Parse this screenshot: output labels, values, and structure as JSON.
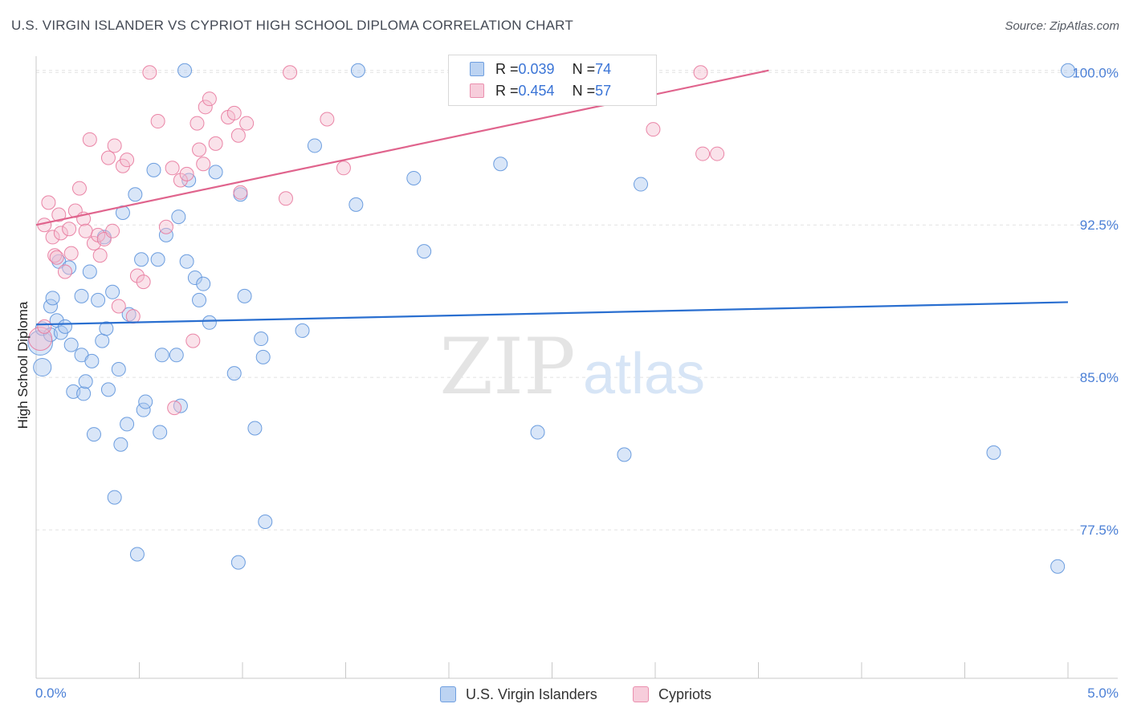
{
  "title": "U.S. VIRGIN ISLANDER VS CYPRIOT HIGH SCHOOL DIPLOMA CORRELATION CHART",
  "source": "Source: ZipAtlas.com",
  "watermark": {
    "zip": "ZIP",
    "atlas": "atlas"
  },
  "legend": {
    "rows": [
      {
        "r_label": "R = ",
        "r_value": "0.039",
        "n_label": "N = ",
        "n_value": "74"
      },
      {
        "r_label": "R = ",
        "r_value": "0.454",
        "n_label": "N = ",
        "n_value": "57"
      }
    ]
  },
  "bottom_legend": [
    "U.S. Virgin Islanders",
    "Cypriots"
  ],
  "colors": {
    "blue_fill": "#aac8ef",
    "blue_stroke": "#5d93db",
    "blue_line": "#2a6fd0",
    "pink_fill": "#f5bfd0",
    "pink_stroke": "#e8799d",
    "pink_line": "#e0648d",
    "grid": "#e2e2e2",
    "tick_text": "#4a7fd6"
  },
  "chart_data": {
    "type": "scatter",
    "title": "U.S. VIRGIN ISLANDER VS CYPRIOT HIGH SCHOOL DIPLOMA CORRELATION CHART",
    "xlabel": "",
    "ylabel": "High School Diploma",
    "xlim": [
      0.0,
      5.0
    ],
    "ylim": [
      70.2,
      100.8
    ],
    "x_tick_labels": [
      "0.0%",
      "5.0%"
    ],
    "y_ticks": [
      77.5,
      85.0,
      92.5,
      100.0
    ],
    "y_tick_labels": [
      "77.5%",
      "85.0%",
      "92.5%",
      "100.0%"
    ],
    "grid": true,
    "series": [
      {
        "name": "U.S. Virgin Islanders",
        "color": "blue",
        "trend": {
          "x": [
            0.0,
            5.0
          ],
          "y": [
            87.6,
            88.7
          ]
        },
        "points": [
          [
            0.02,
            86.7,
            1.8
          ],
          [
            0.03,
            85.5,
            1.3
          ],
          [
            0.03,
            87.4,
            1.0
          ],
          [
            0.07,
            87.1,
            1.0
          ],
          [
            0.07,
            88.5,
            1.0
          ],
          [
            0.08,
            88.9,
            1.0
          ],
          [
            0.1,
            87.8,
            1.0
          ],
          [
            0.11,
            90.7,
            1.0
          ],
          [
            0.12,
            87.2,
            1.0
          ],
          [
            0.14,
            87.5,
            1.0
          ],
          [
            0.16,
            90.4,
            1.0
          ],
          [
            0.17,
            86.6,
            1.0
          ],
          [
            0.18,
            84.3,
            1.0
          ],
          [
            0.22,
            89.0,
            1.0
          ],
          [
            0.22,
            86.1,
            1.0
          ],
          [
            0.23,
            84.2,
            1.0
          ],
          [
            0.24,
            84.8,
            1.0
          ],
          [
            0.26,
            90.2,
            1.0
          ],
          [
            0.27,
            85.8,
            1.0
          ],
          [
            0.28,
            82.2,
            1.0
          ],
          [
            0.3,
            88.8,
            1.0
          ],
          [
            0.32,
            86.8,
            1.0
          ],
          [
            0.33,
            91.9,
            1.0
          ],
          [
            0.34,
            87.4,
            1.0
          ],
          [
            0.35,
            84.4,
            1.0
          ],
          [
            0.37,
            89.2,
            1.0
          ],
          [
            0.38,
            79.1,
            1.0
          ],
          [
            0.4,
            85.4,
            1.0
          ],
          [
            0.41,
            81.7,
            1.0
          ],
          [
            0.42,
            93.1,
            1.0
          ],
          [
            0.44,
            82.7,
            1.0
          ],
          [
            0.45,
            88.1,
            1.0
          ],
          [
            0.48,
            94.0,
            1.0
          ],
          [
            0.49,
            76.3,
            1.0
          ],
          [
            0.51,
            90.8,
            1.0
          ],
          [
            0.52,
            83.4,
            1.0
          ],
          [
            0.53,
            83.8,
            1.0
          ],
          [
            0.57,
            95.2,
            1.0
          ],
          [
            0.59,
            90.8,
            1.0
          ],
          [
            0.6,
            82.3,
            1.0
          ],
          [
            0.61,
            86.1,
            1.0
          ],
          [
            0.63,
            92.0,
            1.0
          ],
          [
            0.68,
            86.1,
            1.0
          ],
          [
            0.69,
            92.9,
            1.0
          ],
          [
            0.7,
            83.6,
            1.0
          ],
          [
            0.72,
            100.1,
            1.0
          ],
          [
            0.73,
            90.7,
            1.0
          ],
          [
            0.74,
            94.7,
            1.0
          ],
          [
            0.77,
            89.9,
            1.0
          ],
          [
            0.79,
            88.8,
            1.0
          ],
          [
            0.81,
            89.6,
            1.0
          ],
          [
            0.84,
            87.7,
            1.0
          ],
          [
            0.87,
            95.1,
            1.0
          ],
          [
            0.96,
            85.2,
            1.0
          ],
          [
            0.98,
            75.9,
            1.0
          ],
          [
            0.99,
            94.0,
            1.0
          ],
          [
            1.01,
            89.0,
            1.0
          ],
          [
            1.06,
            82.5,
            1.0
          ],
          [
            1.09,
            86.9,
            1.0
          ],
          [
            1.1,
            86.0,
            1.0
          ],
          [
            1.11,
            77.9,
            1.0
          ],
          [
            1.29,
            87.3,
            1.0
          ],
          [
            1.35,
            96.4,
            1.0
          ],
          [
            1.55,
            93.5,
            1.0
          ],
          [
            1.56,
            100.1,
            1.0
          ],
          [
            1.83,
            94.8,
            1.0
          ],
          [
            1.88,
            91.2,
            1.0
          ],
          [
            2.25,
            95.5,
            1.0
          ],
          [
            2.43,
            82.3,
            1.0
          ],
          [
            2.85,
            81.2,
            1.0
          ],
          [
            2.93,
            94.5,
            1.0
          ],
          [
            4.64,
            81.3,
            1.0
          ],
          [
            4.95,
            75.7,
            1.0
          ],
          [
            5.0,
            100.1,
            1.0
          ]
        ]
      },
      {
        "name": "Cypriots",
        "color": "pink",
        "trend": {
          "x": [
            0.0,
            3.55
          ],
          "y": [
            92.5,
            100.1
          ]
        },
        "points": [
          [
            0.02,
            86.9,
            1.7
          ],
          [
            0.04,
            87.5,
            1.0
          ],
          [
            0.04,
            92.5,
            1.0
          ],
          [
            0.06,
            93.6,
            1.0
          ],
          [
            0.08,
            91.9,
            1.0
          ],
          [
            0.09,
            91.0,
            1.0
          ],
          [
            0.1,
            90.9,
            1.0
          ],
          [
            0.11,
            93.0,
            1.0
          ],
          [
            0.12,
            92.1,
            1.0
          ],
          [
            0.14,
            90.2,
            1.0
          ],
          [
            0.16,
            92.3,
            1.0
          ],
          [
            0.17,
            91.1,
            1.0
          ],
          [
            0.19,
            93.2,
            1.0
          ],
          [
            0.21,
            94.3,
            1.0
          ],
          [
            0.23,
            92.8,
            1.0
          ],
          [
            0.24,
            92.2,
            1.0
          ],
          [
            0.26,
            96.7,
            1.0
          ],
          [
            0.28,
            91.6,
            1.0
          ],
          [
            0.3,
            92.0,
            1.0
          ],
          [
            0.31,
            91.0,
            1.0
          ],
          [
            0.33,
            91.8,
            1.0
          ],
          [
            0.35,
            95.8,
            1.0
          ],
          [
            0.37,
            92.2,
            1.0
          ],
          [
            0.38,
            96.4,
            1.0
          ],
          [
            0.4,
            88.5,
            1.0
          ],
          [
            0.42,
            95.4,
            1.0
          ],
          [
            0.44,
            95.7,
            1.0
          ],
          [
            0.47,
            88.0,
            1.0
          ],
          [
            0.49,
            90.0,
            1.0
          ],
          [
            0.52,
            89.7,
            1.0
          ],
          [
            0.55,
            100.0,
            1.0
          ],
          [
            0.59,
            97.6,
            1.0
          ],
          [
            0.63,
            92.4,
            1.0
          ],
          [
            0.66,
            95.3,
            1.0
          ],
          [
            0.67,
            83.5,
            1.0
          ],
          [
            0.7,
            94.7,
            1.0
          ],
          [
            0.73,
            95.0,
            1.0
          ],
          [
            0.76,
            86.8,
            1.0
          ],
          [
            0.78,
            97.5,
            1.0
          ],
          [
            0.79,
            96.2,
            1.0
          ],
          [
            0.81,
            95.5,
            1.0
          ],
          [
            0.82,
            98.3,
            1.0
          ],
          [
            0.84,
            98.7,
            1.0
          ],
          [
            0.87,
            96.5,
            1.0
          ],
          [
            0.93,
            97.8,
            1.0
          ],
          [
            0.96,
            98.0,
            1.0
          ],
          [
            0.98,
            96.9,
            1.0
          ],
          [
            0.99,
            94.1,
            1.0
          ],
          [
            1.02,
            97.5,
            1.0
          ],
          [
            1.21,
            93.8,
            1.0
          ],
          [
            1.23,
            100.0,
            1.0
          ],
          [
            1.41,
            97.7,
            1.0
          ],
          [
            1.49,
            95.3,
            1.0
          ],
          [
            2.99,
            97.2,
            1.0
          ],
          [
            3.22,
            100.0,
            1.0
          ],
          [
            3.23,
            96.0,
            1.0
          ],
          [
            3.3,
            96.0,
            1.0
          ]
        ]
      }
    ]
  }
}
